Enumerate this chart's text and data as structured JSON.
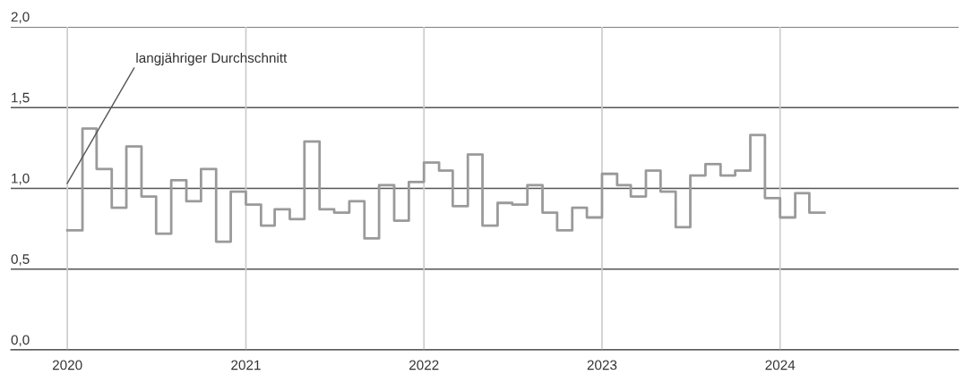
{
  "chart_data": {
    "type": "step",
    "color": "#9a9a9a",
    "x": [
      "2020-01",
      "2020-02",
      "2020-03",
      "2020-04",
      "2020-05",
      "2020-06",
      "2020-07",
      "2020-08",
      "2020-09",
      "2020-10",
      "2020-11",
      "2020-12",
      "2021-01",
      "2021-02",
      "2021-03",
      "2021-04",
      "2021-05",
      "2021-06",
      "2021-07",
      "2021-08",
      "2021-09",
      "2021-10",
      "2021-11",
      "2021-12",
      "2022-01",
      "2022-02",
      "2022-03",
      "2022-04",
      "2022-05",
      "2022-06",
      "2022-07",
      "2022-08",
      "2022-09",
      "2022-10",
      "2022-11",
      "2022-12",
      "2023-01",
      "2023-02",
      "2023-03",
      "2023-04",
      "2023-05",
      "2023-06",
      "2023-07",
      "2023-08",
      "2023-09",
      "2023-10",
      "2023-11",
      "2023-12",
      "2024-01",
      "2024-02",
      "2024-03",
      "2024-04"
    ],
    "values": [
      0.74,
      1.37,
      1.12,
      0.88,
      1.26,
      0.95,
      0.72,
      1.05,
      0.92,
      1.12,
      0.67,
      0.98,
      0.9,
      0.77,
      0.87,
      0.81,
      1.29,
      0.87,
      0.85,
      0.92,
      0.69,
      1.02,
      0.8,
      1.04,
      1.16,
      1.11,
      0.89,
      1.21,
      0.77,
      0.91,
      0.9,
      1.02,
      0.85,
      0.74,
      0.88,
      0.82,
      1.09,
      1.02,
      0.95,
      1.11,
      0.98,
      0.76,
      1.08,
      1.15,
      1.08,
      1.11,
      1.33,
      0.94,
      0.82,
      0.97,
      0.85,
      0.85
    ],
    "xlim": [
      "2019-09-07",
      "2025"
    ],
    "xticks": [
      {
        "value": "2020",
        "label": "2020"
      },
      {
        "value": "2021",
        "label": "2021"
      },
      {
        "value": "2022",
        "label": "2022"
      },
      {
        "value": "2023",
        "label": "2023"
      },
      {
        "value": "2024",
        "label": "2024"
      }
    ],
    "ylim": [
      0,
      2
    ],
    "yticks": [
      {
        "value": 0,
        "label": "0,0"
      },
      {
        "value": 0.5,
        "label": "0,5"
      },
      {
        "value": 1,
        "label": "1,0"
      },
      {
        "value": 1.5,
        "label": "1,5"
      },
      {
        "value": 2,
        "label": "2,0"
      }
    ],
    "grid": true,
    "annotations": [
      "langjähriger Durchschnitt"
    ]
  }
}
